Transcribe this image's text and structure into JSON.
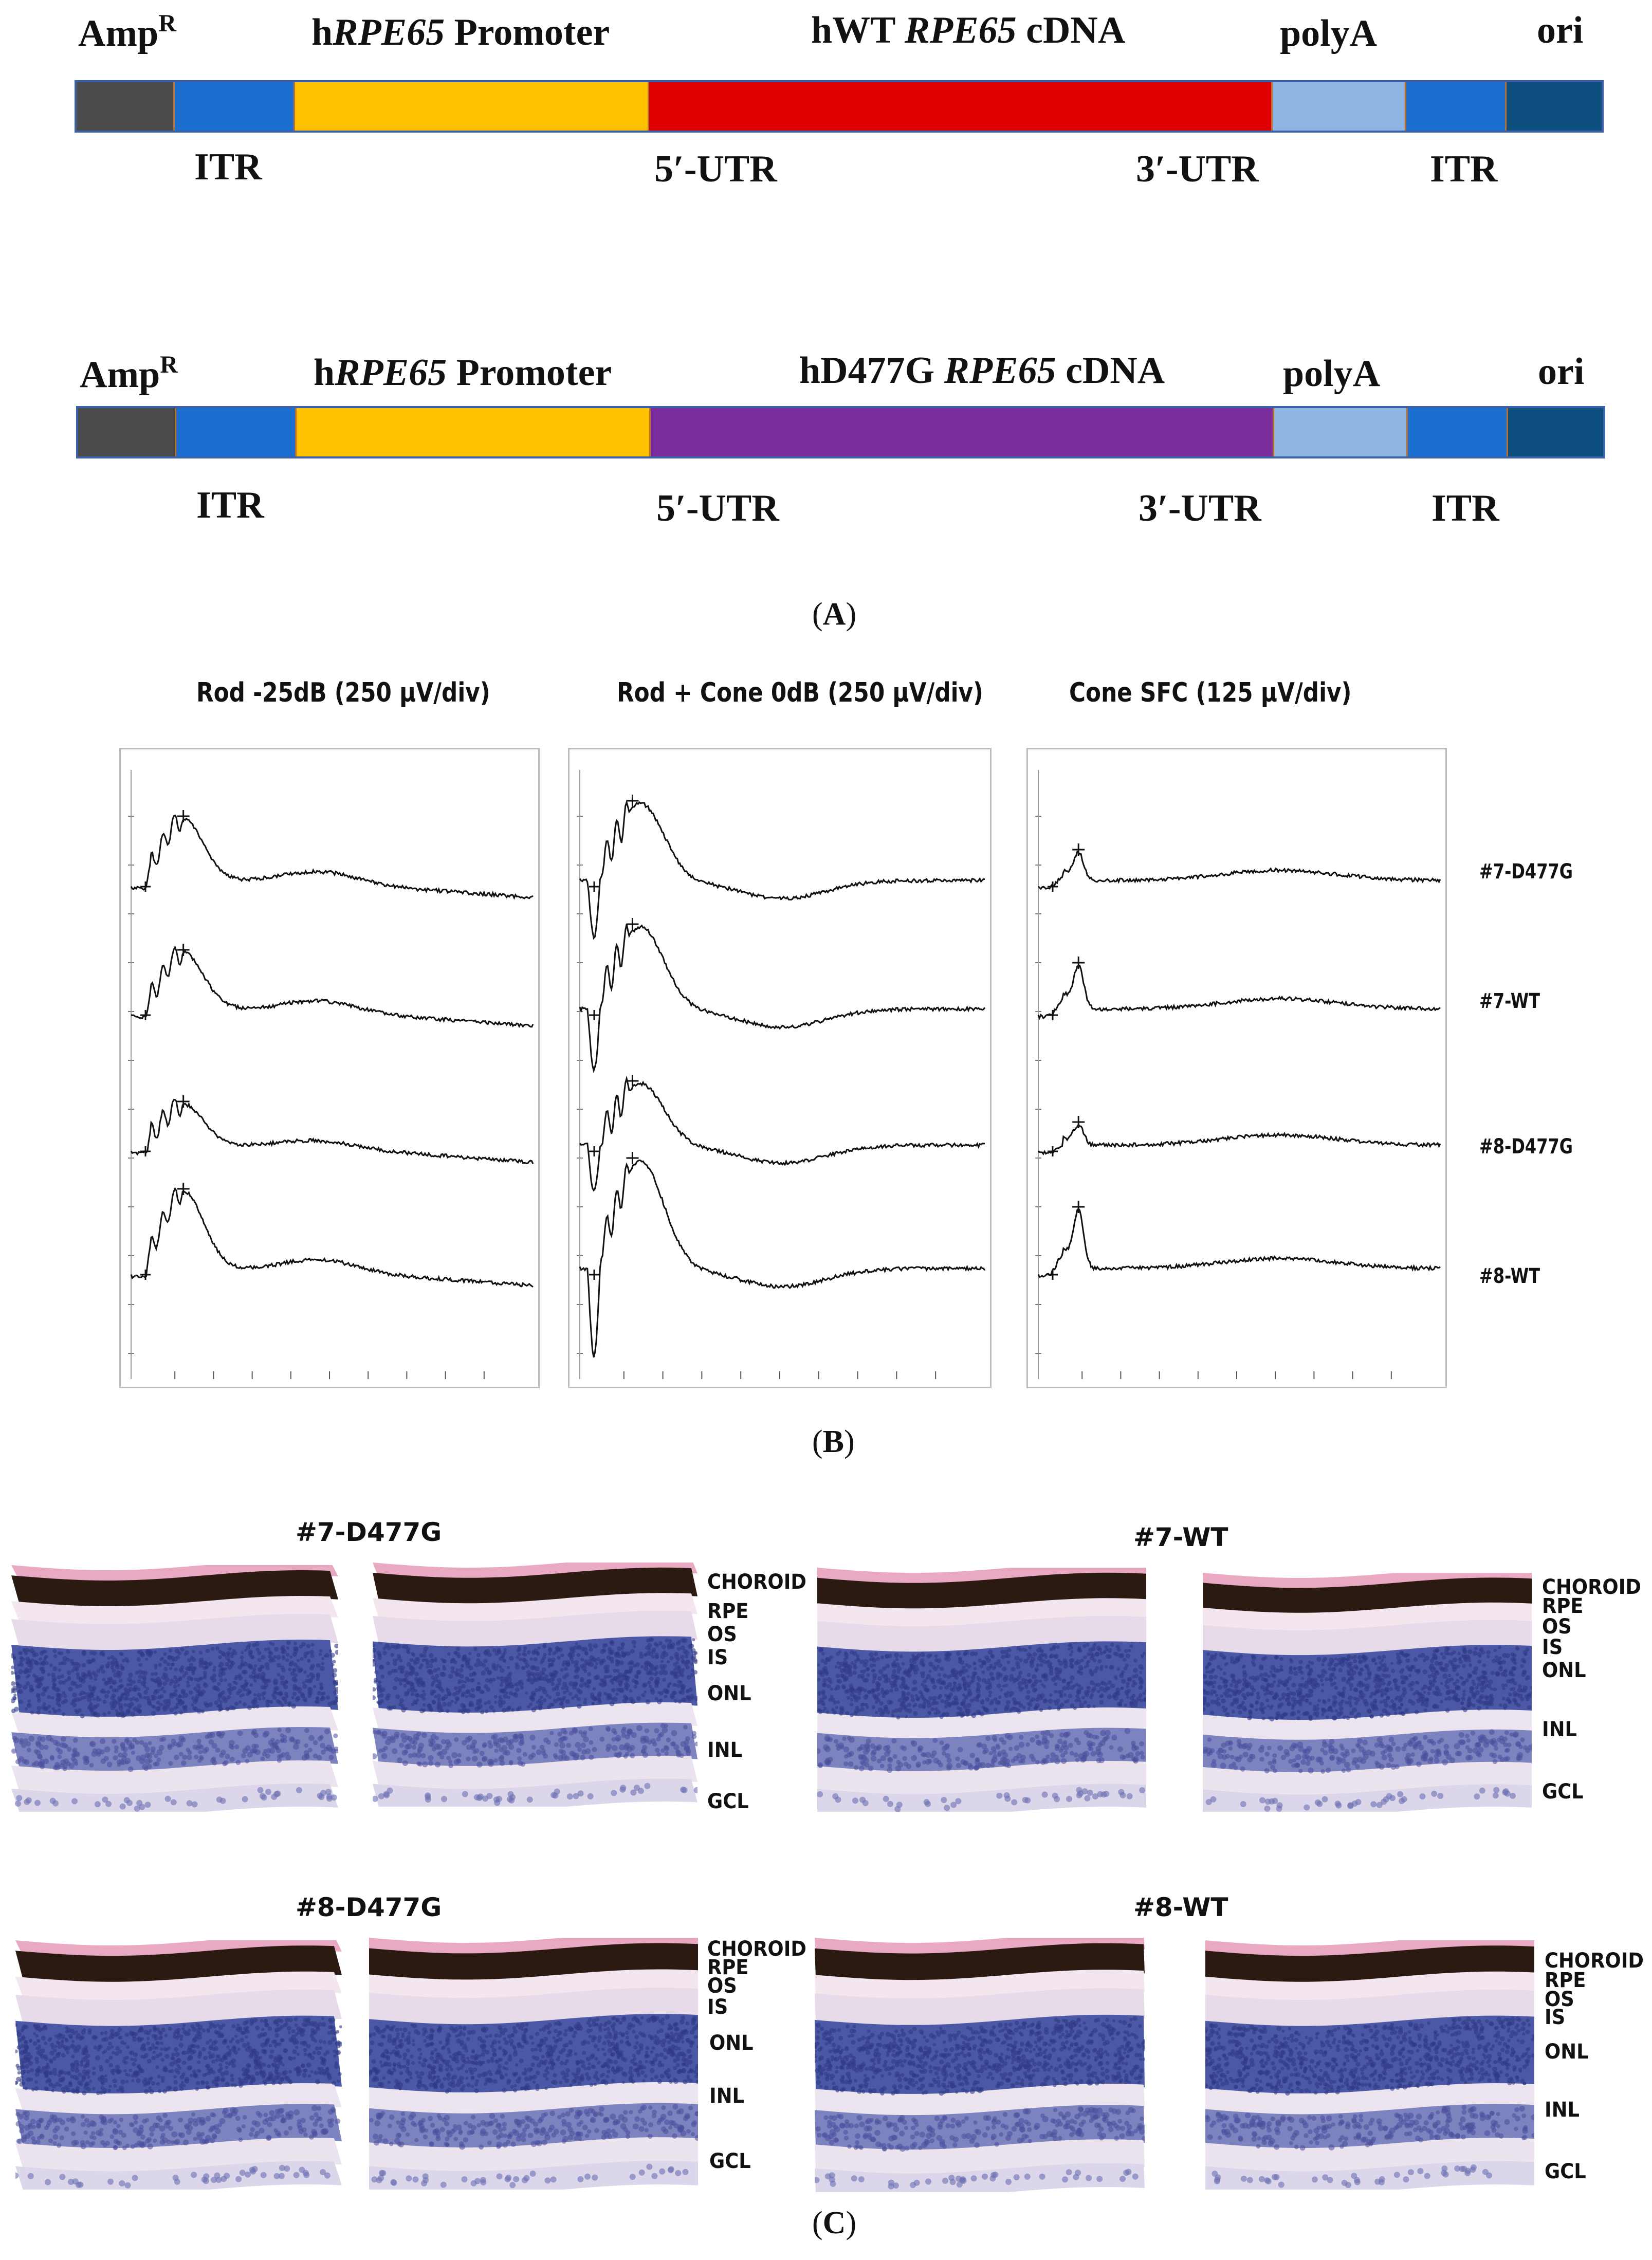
{
  "colors": {
    "ampr": "#4a4a4a",
    "itr": "#1a6fd0",
    "promoter": "#ffc000",
    "cdna_wt": "#e00000",
    "cdna_d477g": "#7b2d9e",
    "polya": "#8db4e2",
    "ori": "#0d4f7e",
    "hematoxylin": "#3e4a98",
    "eosin": "#e8b4c8",
    "pigment": "#2a1a12"
  },
  "panel_a": {
    "construct_1": {
      "ampr": "Amp",
      "ampr_sup": "R",
      "promoter_pre": "h",
      "promoter_gene": "RPE65",
      "promoter_post": " Promoter",
      "cdna_pre": "hWT ",
      "cdna_gene": "RPE65",
      "cdna_post": " cDNA",
      "polya": "polyA",
      "ori": "ori",
      "itr_left": "ITR",
      "utr5": "5′-UTR",
      "utr3": "3′-UTR",
      "itr_right": "ITR"
    },
    "construct_2": {
      "ampr": "Amp",
      "ampr_sup": "R",
      "promoter_pre": "h",
      "promoter_gene": "RPE65",
      "promoter_post": " Promoter",
      "cdna_pre": "hD477G ",
      "cdna_gene": "RPE65",
      "cdna_post": " cDNA",
      "polya": "polyA",
      "ori": "ori",
      "itr_left": "ITR",
      "utr5": "5′-UTR",
      "utr3": "3′-UTR",
      "itr_right": "ITR"
    },
    "label": "A"
  },
  "panel_b": {
    "label": "B",
    "titles": [
      "Rod -25dB (250 μV/div)",
      "Rod + Cone 0dB (250 μV/div)",
      "Cone SFC (125 μV/div)"
    ],
    "rows": [
      "#7-D477G",
      "#7-WT",
      "#8-D477G",
      "#8-WT"
    ]
  },
  "panel_c": {
    "label": "C",
    "groups": [
      {
        "title": "#7-D477G",
        "layers": [
          "CHOROID",
          "RPE",
          "OS",
          "IS",
          "ONL",
          "INL",
          "GCL"
        ]
      },
      {
        "title": "#7-WT",
        "layers": [
          "CHOROID",
          "RPE",
          "OS",
          "IS",
          "ONL",
          "INL",
          "GCL"
        ]
      },
      {
        "title": "#8-D477G",
        "layers": [
          "CHOROID",
          "RPE",
          "OS",
          "IS",
          "ONL",
          "INL",
          "GCL"
        ]
      },
      {
        "title": "#8-WT",
        "layers": [
          "CHOROID",
          "RPE",
          "OS",
          "IS",
          "ONL",
          "INL",
          "GCL"
        ]
      }
    ]
  }
}
